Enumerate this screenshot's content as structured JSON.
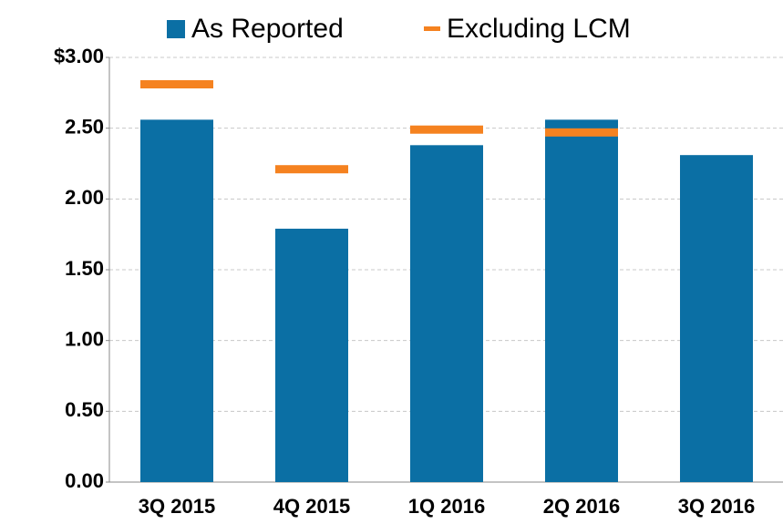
{
  "chart_data": {
    "type": "bar",
    "categories": [
      "3Q 2015",
      "4Q 2015",
      "1Q 2016",
      "2Q 2016",
      "3Q 2016"
    ],
    "series": [
      {
        "name": "As Reported",
        "color": "#0b6fa4",
        "marker": "bar",
        "values": [
          2.56,
          1.79,
          2.38,
          2.56,
          2.31
        ]
      },
      {
        "name": "Excluding LCM",
        "color": "#f58220",
        "marker": "dash",
        "values": [
          2.81,
          2.21,
          2.49,
          2.47,
          null
        ]
      }
    ],
    "ylim": [
      0,
      3
    ],
    "yticks": [
      {
        "value": 0,
        "label": "0.00"
      },
      {
        "value": 0.5,
        "label": "0.50"
      },
      {
        "value": 1,
        "label": "1.00"
      },
      {
        "value": 1.5,
        "label": "1.50"
      },
      {
        "value": 2,
        "label": "2.00"
      },
      {
        "value": 2.5,
        "label": "2.50"
      },
      {
        "value": 3,
        "label": "$3.00"
      }
    ],
    "grid": true,
    "legend": "top"
  }
}
